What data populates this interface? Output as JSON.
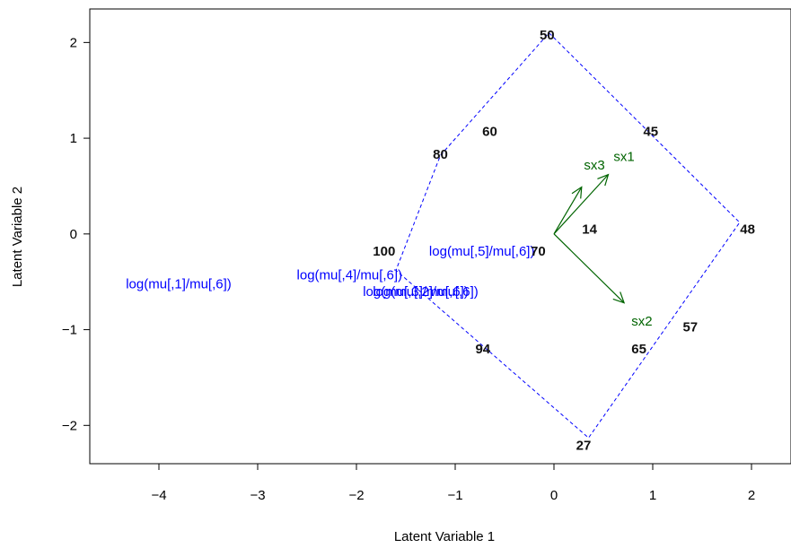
{
  "chart_data": {
    "type": "scatter",
    "xlabel": "Latent Variable 1",
    "ylabel": "Latent Variable 2",
    "xlim": [
      -4.7,
      2.4
    ],
    "ylim": [
      -2.4,
      2.35
    ],
    "xticks": [
      -4,
      -3,
      -2,
      -1,
      0,
      1,
      2
    ],
    "yticks": [
      -2,
      -1,
      0,
      1,
      2
    ],
    "xtick_labels": [
      "−4",
      "−3",
      "−2",
      "−1",
      "0",
      "1",
      "2"
    ],
    "ytick_labels": [
      "−2",
      "−1",
      "0",
      "1",
      "2"
    ],
    "grid": false,
    "hull_color": "#0000ff",
    "hull": [
      [
        -0.05,
        2.1
      ],
      [
        1.88,
        0.12
      ],
      [
        0.35,
        -2.13
      ],
      [
        -1.6,
        -0.38
      ],
      [
        -1.15,
        0.82
      ],
      [
        -0.05,
        2.1
      ]
    ],
    "site_points": [
      {
        "x": -0.07,
        "y": 2.08,
        "label": "50"
      },
      {
        "x": 0.98,
        "y": 1.07,
        "label": "45"
      },
      {
        "x": -0.65,
        "y": 1.07,
        "label": "60"
      },
      {
        "x": -1.15,
        "y": 0.83,
        "label": "80"
      },
      {
        "x": 0.36,
        "y": 0.05,
        "label": "14"
      },
      {
        "x": 1.96,
        "y": 0.05,
        "label": "48"
      },
      {
        "x": -1.72,
        "y": -0.18,
        "label": "100"
      },
      {
        "x": -0.16,
        "y": -0.18,
        "label": "70"
      },
      {
        "x": 1.38,
        "y": -0.97,
        "label": "57"
      },
      {
        "x": -0.72,
        "y": -1.2,
        "label": "94"
      },
      {
        "x": 0.86,
        "y": -1.2,
        "label": "65"
      },
      {
        "x": 0.3,
        "y": -2.21,
        "label": "27"
      }
    ],
    "response_labels": [
      {
        "x": -3.8,
        "y": -0.52,
        "label": "log(mu[,1]/mu[,6])"
      },
      {
        "x": -2.07,
        "y": -0.43,
        "label": "log(mu[,4]/mu[,6])"
      },
      {
        "x": -0.73,
        "y": -0.18,
        "label": "log(mu[,5]/mu[,6])"
      },
      {
        "x": -1.4,
        "y": -0.6,
        "label": "log(mu[,3]/mu[,6])"
      },
      {
        "x": -1.3,
        "y": -0.6,
        "label": "log(mu[,2]/mu[,6])"
      }
    ],
    "response_color": "#0000ff",
    "arrow_color": "#006400",
    "arrows": [
      {
        "name": "sx1",
        "x": 0.55,
        "y": 0.62,
        "label_x": 0.71,
        "label_y": 0.81
      },
      {
        "name": "sx2",
        "x": 0.71,
        "y": -0.72,
        "label_x": 0.89,
        "label_y": -0.91
      },
      {
        "name": "sx3",
        "x": 0.28,
        "y": 0.49,
        "label_x": 0.41,
        "label_y": 0.72
      }
    ]
  }
}
